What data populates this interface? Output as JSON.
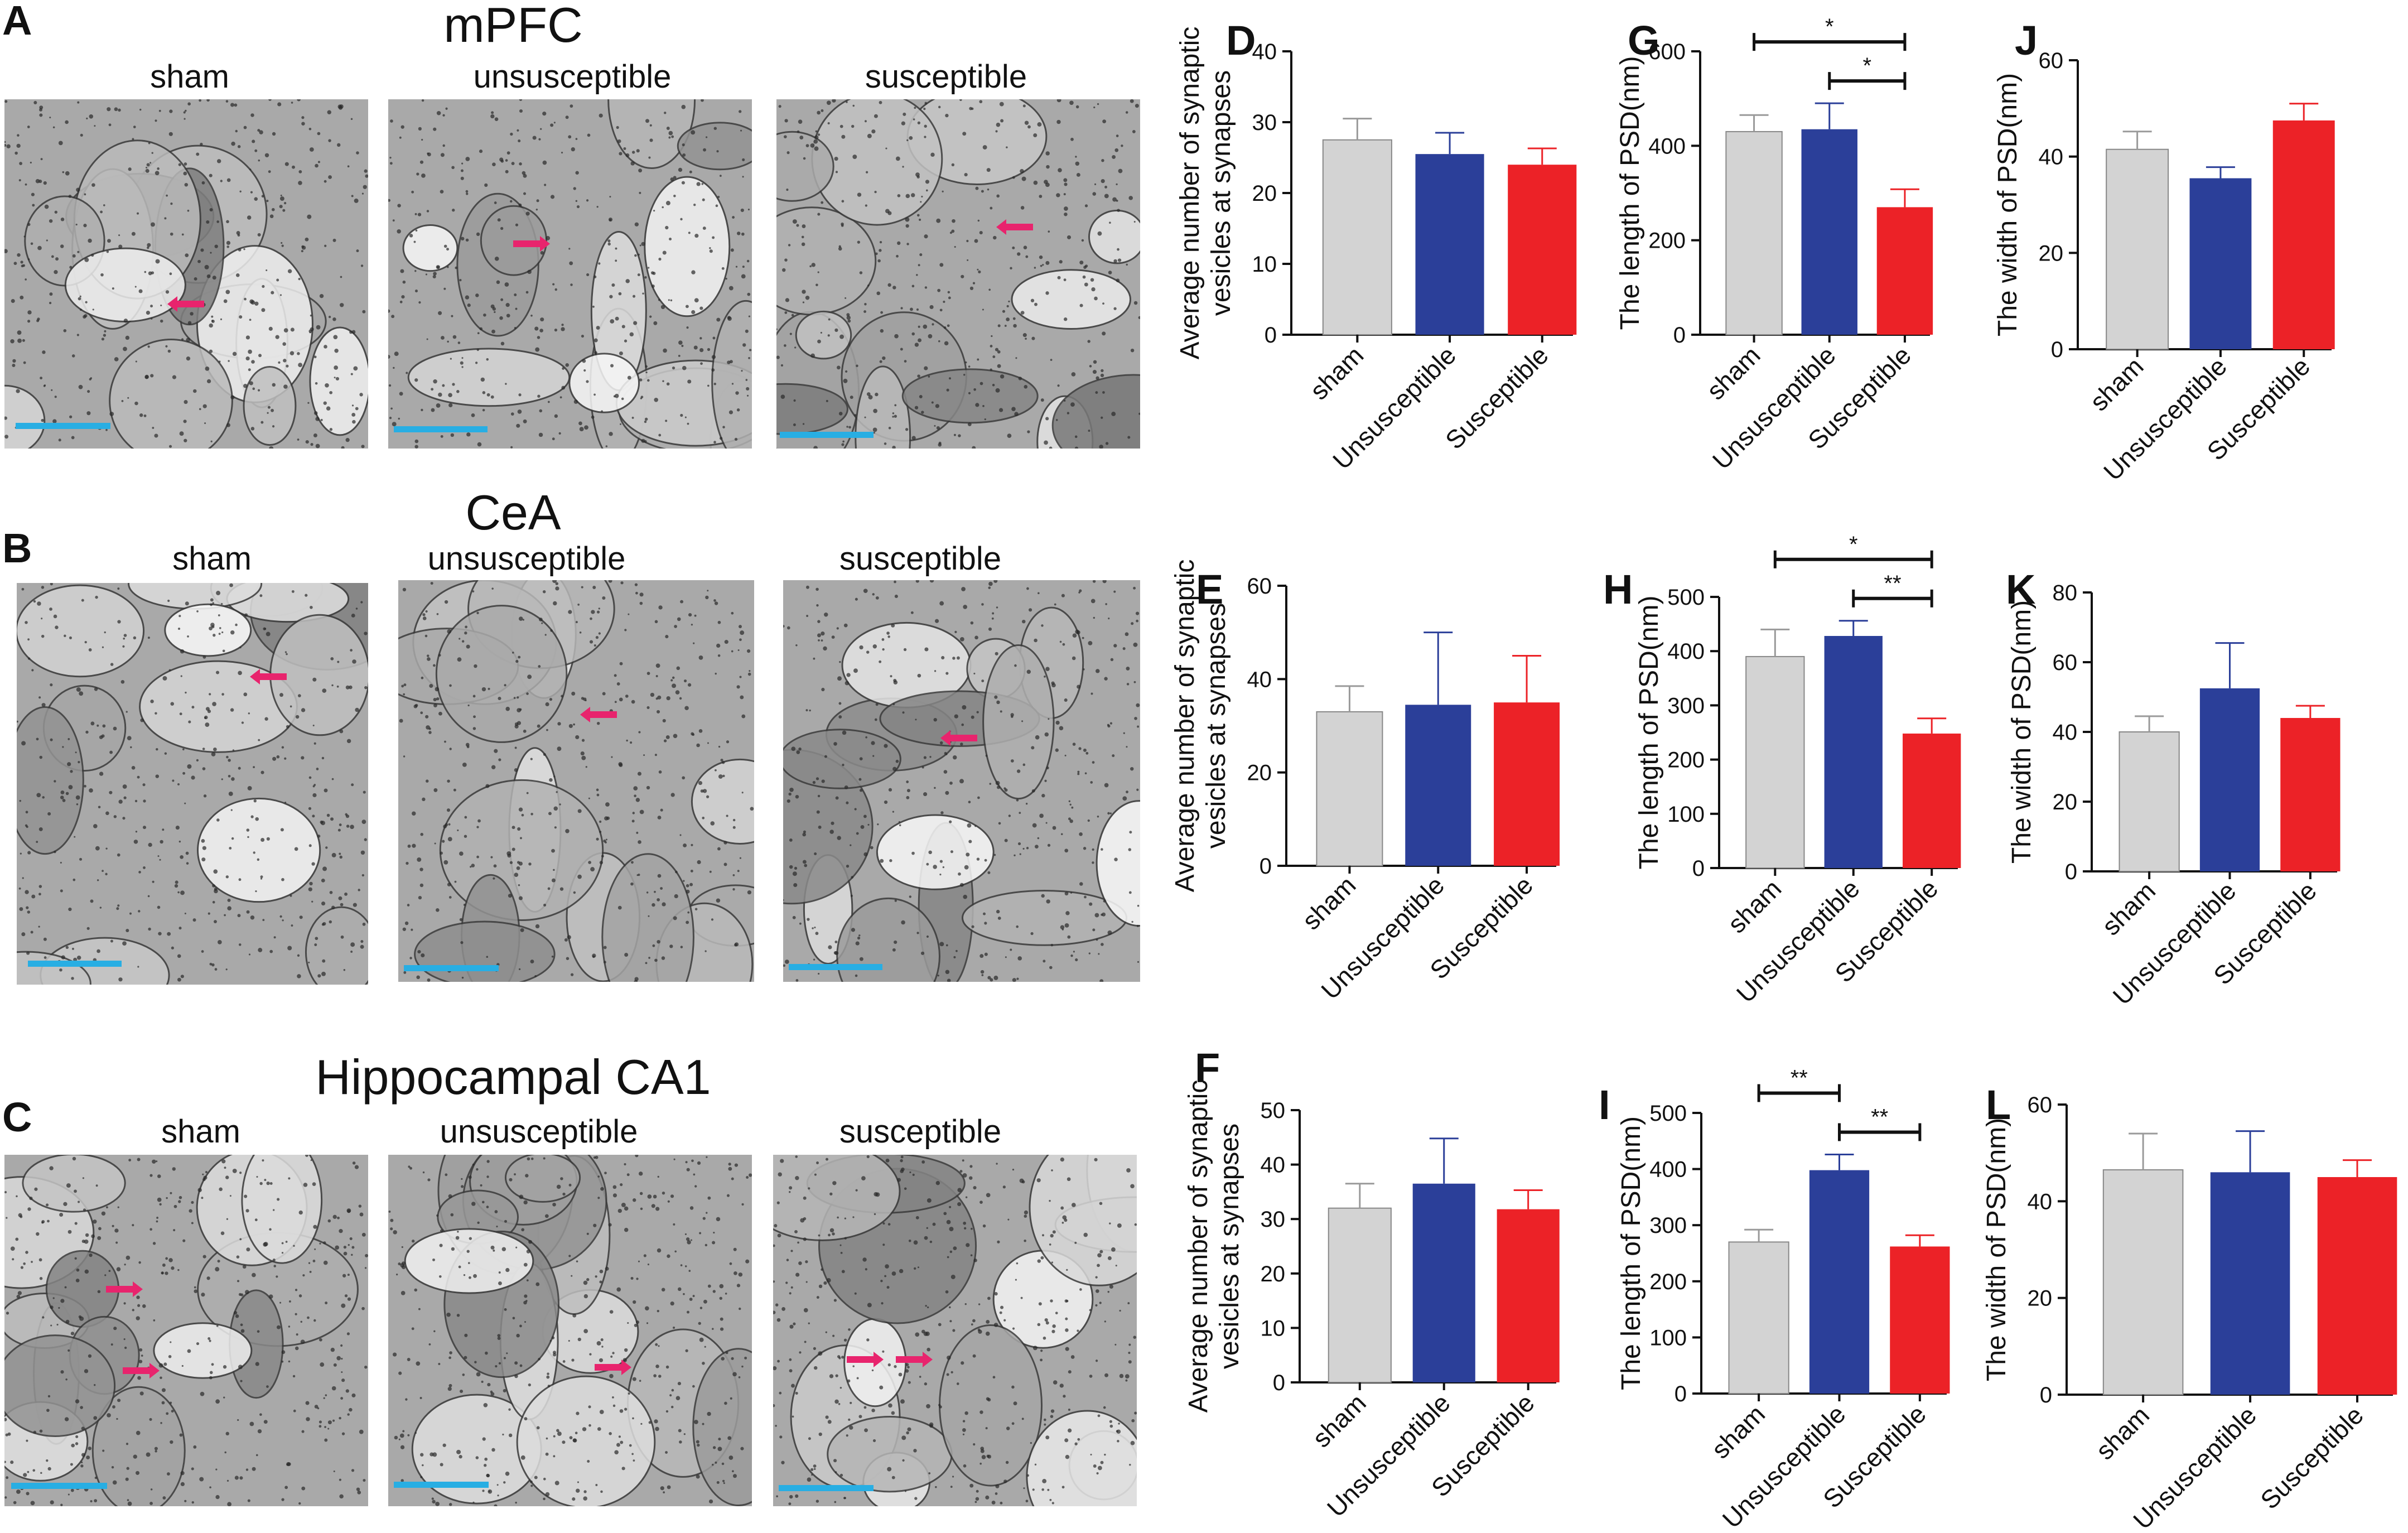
{
  "figure": {
    "panel_letters": [
      "A",
      "B",
      "C",
      "D",
      "E",
      "F",
      "G",
      "H",
      "I",
      "J",
      "K",
      "L"
    ],
    "region_titles": [
      "mPFC",
      "CeA",
      "Hippocampal CA1"
    ],
    "conditions": [
      "sham",
      "unsusceptible",
      "susceptible"
    ],
    "colors": {
      "sham": "#d3d3d3",
      "unsusceptible": "#2b3f99",
      "susceptible": "#ec2227",
      "scale_bar": "#28aee3",
      "arrow": "#e8246d"
    }
  },
  "chart_data": [
    {
      "panel": "D",
      "type": "bar",
      "categories": [
        "sham",
        "Unsusceptible",
        "Susceptible"
      ],
      "values": [
        27.5,
        25.5,
        24
      ],
      "errors": [
        3,
        3,
        2.3
      ],
      "ylabel": [
        "Average number of synaptic",
        "vesicles at synapses"
      ],
      "ylim": [
        0,
        40
      ],
      "yticks": [
        0,
        10,
        20,
        30,
        40
      ],
      "significance": []
    },
    {
      "panel": "G",
      "type": "bar",
      "categories": [
        "sham",
        "Unsusceptible",
        "Susceptible"
      ],
      "values": [
        430,
        435,
        270
      ],
      "errors": [
        35,
        55,
        38
      ],
      "ylabel": [
        "The length of PSD(nm)"
      ],
      "ylim": [
        0,
        600
      ],
      "yticks": [
        0,
        200,
        400,
        600
      ],
      "significance": [
        {
          "from": 0,
          "to": 2,
          "label": "*"
        },
        {
          "from": 1,
          "to": 2,
          "label": "*"
        }
      ]
    },
    {
      "panel": "J",
      "type": "bar",
      "categories": [
        "sham",
        "Unsusceptible",
        "Susceptible"
      ],
      "values": [
        41.5,
        35.5,
        47.5
      ],
      "errors": [
        3.7,
        2.3,
        3.5
      ],
      "ylabel": [
        "The width of PSD(nm)"
      ],
      "ylim": [
        0,
        60
      ],
      "yticks": [
        0,
        20,
        40,
        60
      ],
      "significance": []
    },
    {
      "panel": "E",
      "type": "bar",
      "categories": [
        "sham",
        "Unsusceptible",
        "Susceptible"
      ],
      "values": [
        33,
        34.5,
        35
      ],
      "errors": [
        5.5,
        15.5,
        10
      ],
      "ylabel": [
        "Average number of synaptic",
        "vesicles at synapses"
      ],
      "ylim": [
        0,
        60
      ],
      "yticks": [
        0,
        20,
        40,
        60
      ],
      "significance": []
    },
    {
      "panel": "H",
      "type": "bar",
      "categories": [
        "sham",
        "Unsusceptible",
        "Susceptible"
      ],
      "values": [
        390,
        428,
        248
      ],
      "errors": [
        50,
        28,
        28
      ],
      "ylabel": [
        "The length of PSD(nm)"
      ],
      "ylim": [
        0,
        500
      ],
      "yticks": [
        0,
        100,
        200,
        300,
        400,
        500
      ],
      "significance": [
        {
          "from": 0,
          "to": 2,
          "label": "*"
        },
        {
          "from": 1,
          "to": 2,
          "label": "**"
        }
      ]
    },
    {
      "panel": "K",
      "type": "bar",
      "categories": [
        "sham",
        "Unsusceptible",
        "Susceptible"
      ],
      "values": [
        40,
        52.5,
        44
      ],
      "errors": [
        4.5,
        13,
        3.5
      ],
      "ylabel": [
        "The width of PSD(nm)"
      ],
      "ylim": [
        0,
        80
      ],
      "yticks": [
        0,
        20,
        40,
        60,
        80
      ],
      "significance": []
    },
    {
      "panel": "F",
      "type": "bar",
      "categories": [
        "sham",
        "Unsusceptible",
        "Susceptible"
      ],
      "values": [
        32,
        36.5,
        31.8
      ],
      "errors": [
        4.5,
        8.3,
        3.5
      ],
      "ylabel": [
        "Average number of synaptic",
        "vesicles at synapses"
      ],
      "ylim": [
        0,
        50
      ],
      "yticks": [
        0,
        10,
        20,
        30,
        40,
        50
      ],
      "significance": []
    },
    {
      "panel": "I",
      "type": "bar",
      "categories": [
        "sham",
        "Unsusceptible",
        "Susceptible"
      ],
      "values": [
        270,
        398,
        262
      ],
      "errors": [
        22,
        28,
        20
      ],
      "ylabel": [
        "The length of PSD(nm)"
      ],
      "ylim": [
        0,
        500
      ],
      "yticks": [
        0,
        100,
        200,
        300,
        400,
        500
      ],
      "significance": [
        {
          "from": 0,
          "to": 1,
          "label": "**"
        },
        {
          "from": 1,
          "to": 2,
          "label": "**"
        }
      ]
    },
    {
      "panel": "L",
      "type": "bar",
      "categories": [
        "sham",
        "Unsusceptible",
        "Susceptible"
      ],
      "values": [
        46.5,
        46,
        45
      ],
      "errors": [
        7.5,
        8.5,
        3.5
      ],
      "ylabel": [
        "The width of PSD(nm)"
      ],
      "ylim": [
        0,
        60
      ],
      "yticks": [
        0,
        20,
        40,
        60
      ],
      "significance": []
    }
  ]
}
